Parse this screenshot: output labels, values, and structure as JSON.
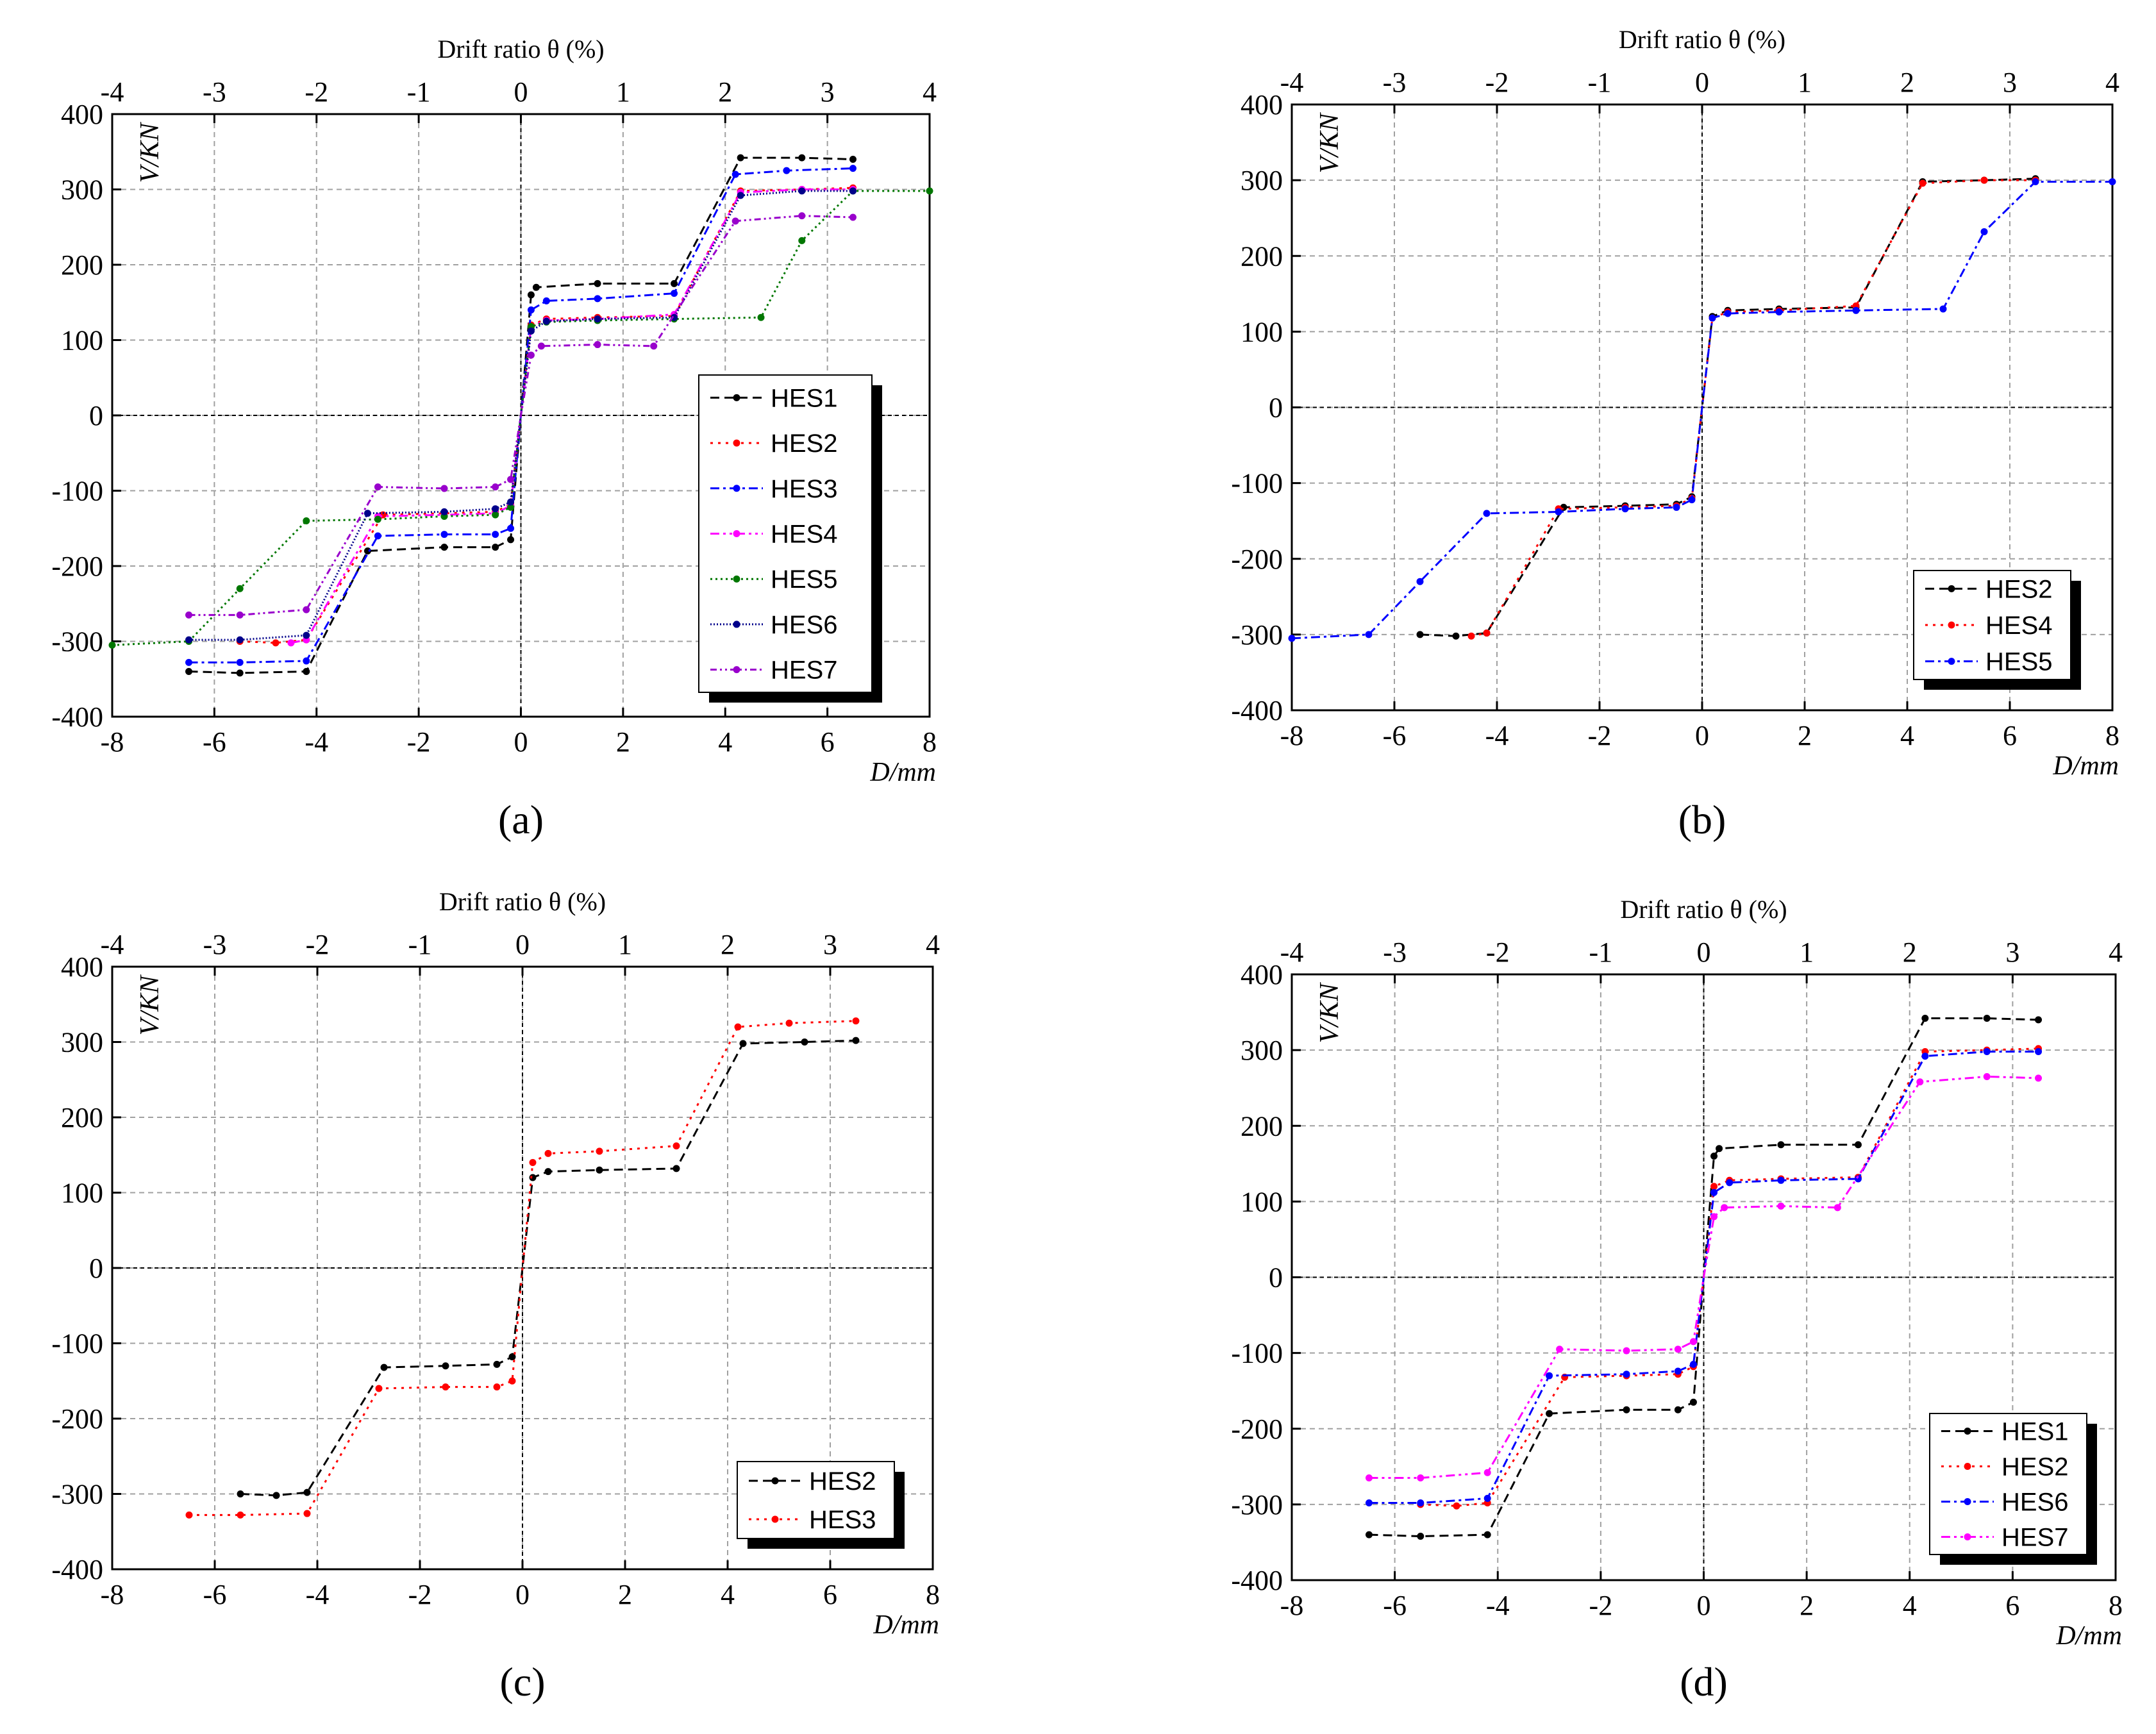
{
  "colors": {
    "HES1": "#000000",
    "HES2": "#ff0000",
    "HES3": "#0000ff",
    "HES4": "#ff00ff",
    "HES5": "#007700",
    "HES6": "#00008b",
    "HES7": "#9900cc",
    "grid": "#a0a0a0",
    "axis": "#000000"
  },
  "chart_data": [
    {
      "panel": "(a)",
      "type": "line",
      "top_axis_label": "Drift ratio θ (%)",
      "ylabel": "V/KN",
      "xlabel": "D/mm",
      "xlim": [
        -8,
        8
      ],
      "ylim": [
        -400,
        400
      ],
      "top_lim": [
        -4,
        4
      ],
      "xticks": [
        "-8",
        "-6",
        "-4",
        "-2",
        "0",
        "2",
        "4",
        "6",
        "8"
      ],
      "yticks": [
        "-400",
        "-300",
        "-200",
        "-100",
        "0",
        "100",
        "200",
        "300",
        "400"
      ],
      "top_ticks": [
        "-4",
        "-3",
        "-2",
        "-1",
        "0",
        "1",
        "2",
        "3",
        "4"
      ],
      "legend": [
        "HES1",
        "HES2",
        "HES3",
        "HES4",
        "HES5",
        "HES6",
        "HES7"
      ],
      "series": [
        {
          "name": "HES1",
          "dash": "14,8",
          "x": [
            -6.5,
            -5.5,
            -4.2,
            -3,
            -1.5,
            -0.5,
            -0.2,
            0,
            0.2,
            0.3,
            1.5,
            3,
            4.3,
            5.5,
            6.5
          ],
          "y": [
            -340,
            -342,
            -340,
            -180,
            -175,
            -175,
            -165,
            0,
            160,
            170,
            175,
            175,
            342,
            342,
            340
          ]
        },
        {
          "name": "HES2",
          "dash": "4,8",
          "x": [
            -5.5,
            -4.8,
            -4.2,
            -2.7,
            -1.5,
            -0.5,
            -0.2,
            0,
            0.2,
            0.5,
            1.5,
            3,
            4.3,
            5.5,
            6.5
          ],
          "y": [
            -300,
            -302,
            -298,
            -132,
            -130,
            -128,
            -118,
            0,
            120,
            128,
            130,
            132,
            298,
            300,
            302
          ]
        },
        {
          "name": "HES3",
          "dash": "14,6,4,6",
          "x": [
            -6.5,
            -5.5,
            -4.2,
            -2.8,
            -1.5,
            -0.5,
            -0.2,
            0,
            0.2,
            0.5,
            1.5,
            3,
            4.2,
            5.2,
            6.5
          ],
          "y": [
            -328,
            -328,
            -326,
            -160,
            -158,
            -158,
            -150,
            0,
            140,
            152,
            155,
            162,
            320,
            325,
            328
          ]
        },
        {
          "name": "HES4",
          "dash": "14,6,4,6,4,6",
          "x": [
            -4.5,
            -4.2,
            -2.8,
            -1.5,
            -0.5,
            -0.2,
            0,
            0.2,
            0.5,
            1.5,
            3,
            4.3,
            5.5,
            6.5
          ],
          "y": [
            -302,
            -298,
            -134,
            -132,
            -130,
            -120,
            0,
            118,
            126,
            128,
            134,
            296,
            300,
            300
          ]
        },
        {
          "name": "HES5",
          "dash": "3,5",
          "x": [
            -8,
            -6.5,
            -5.5,
            -4.2,
            -2.8,
            -1.5,
            -0.5,
            -0.2,
            0,
            0.2,
            0.5,
            1.5,
            3,
            4.7,
            5.5,
            6.5,
            8
          ],
          "y": [
            -305,
            -300,
            -230,
            -140,
            -138,
            -134,
            -132,
            -122,
            0,
            118,
            124,
            126,
            128,
            130,
            232,
            298,
            298
          ]
        },
        {
          "name": "HES6",
          "dash": "2,3",
          "x": [
            -6.5,
            -5.5,
            -4.2,
            -3,
            -1.5,
            -0.5,
            -0.2,
            0,
            0.2,
            0.5,
            1.5,
            3,
            4.3,
            5.5,
            6.5
          ],
          "y": [
            -298,
            -298,
            -292,
            -130,
            -128,
            -124,
            -115,
            0,
            112,
            125,
            128,
            130,
            292,
            298,
            298
          ]
        },
        {
          "name": "HES7",
          "dash": "10,5,3,5,3,5",
          "x": [
            -6.5,
            -5.5,
            -4.2,
            -2.8,
            -1.5,
            -0.5,
            -0.2,
            0,
            0.2,
            0.4,
            1.5,
            2.6,
            4.2,
            5.5,
            6.5
          ],
          "y": [
            -265,
            -265,
            -258,
            -95,
            -97,
            -95,
            -85,
            0,
            80,
            92,
            94,
            92,
            258,
            265,
            263
          ]
        }
      ]
    },
    {
      "panel": "(b)",
      "type": "line",
      "top_axis_label": "Drift ratio θ (%)",
      "ylabel": "V/KN",
      "xlabel": "D/mm",
      "xlim": [
        -8,
        8
      ],
      "ylim": [
        -400,
        400
      ],
      "top_lim": [
        -4,
        4
      ],
      "xticks": [
        "-8",
        "-6",
        "-4",
        "-2",
        "0",
        "2",
        "4",
        "6",
        "8"
      ],
      "yticks": [
        "-400",
        "-300",
        "-200",
        "-100",
        "0",
        "100",
        "200",
        "300",
        "400"
      ],
      "top_ticks": [
        "-4",
        "-3",
        "-2",
        "-1",
        "0",
        "1",
        "2",
        "3",
        "4"
      ],
      "legend": [
        "HES2",
        "HES4",
        "HES5"
      ],
      "series": [
        {
          "name": "HES2",
          "color_key": "HES1",
          "dash": "14,8",
          "x": [
            -5.5,
            -4.8,
            -4.2,
            -2.7,
            -1.5,
            -0.5,
            -0.2,
            0,
            0.2,
            0.5,
            1.5,
            3,
            4.3,
            5.5,
            6.5
          ],
          "y": [
            -300,
            -302,
            -298,
            -132,
            -130,
            -128,
            -118,
            0,
            120,
            128,
            130,
            132,
            298,
            300,
            302
          ]
        },
        {
          "name": "HES4",
          "color_key": "HES2",
          "dash": "4,8",
          "x": [
            -4.5,
            -4.2,
            -2.8,
            -1.5,
            -0.5,
            -0.2,
            0,
            0.2,
            0.5,
            1.5,
            3,
            4.3,
            5.5,
            6.5
          ],
          "y": [
            -302,
            -298,
            -134,
            -132,
            -130,
            -120,
            0,
            118,
            126,
            128,
            134,
            296,
            300,
            300
          ]
        },
        {
          "name": "HES5",
          "color_key": "HES3",
          "dash": "14,6,4,6",
          "x": [
            -8,
            -6.5,
            -5.5,
            -4.2,
            -2.8,
            -1.5,
            -0.5,
            -0.2,
            0,
            0.2,
            0.5,
            1.5,
            3,
            4.7,
            5.5,
            6.5,
            8
          ],
          "y": [
            -305,
            -300,
            -230,
            -140,
            -138,
            -134,
            -132,
            -122,
            0,
            118,
            124,
            126,
            128,
            130,
            232,
            298,
            298
          ]
        }
      ]
    },
    {
      "panel": "(c)",
      "type": "line",
      "top_axis_label": "Drift ratio θ (%)",
      "ylabel": "V/KN",
      "xlabel": "D/mm",
      "xlim": [
        -8,
        8
      ],
      "ylim": [
        -400,
        400
      ],
      "top_lim": [
        -4,
        4
      ],
      "xticks": [
        "-8",
        "-6",
        "-4",
        "-2",
        "0",
        "2",
        "4",
        "6",
        "8"
      ],
      "yticks": [
        "-400",
        "-300",
        "-200",
        "-100",
        "0",
        "100",
        "200",
        "300",
        "400"
      ],
      "top_ticks": [
        "-4",
        "-3",
        "-2",
        "-1",
        "0",
        "1",
        "2",
        "3",
        "4"
      ],
      "legend": [
        "HES2",
        "HES3"
      ],
      "series": [
        {
          "name": "HES2",
          "color_key": "HES1",
          "dash": "14,8",
          "x": [
            -5.5,
            -4.8,
            -4.2,
            -2.7,
            -1.5,
            -0.5,
            -0.2,
            0,
            0.2,
            0.5,
            1.5,
            3,
            4.3,
            5.5,
            6.5
          ],
          "y": [
            -300,
            -302,
            -298,
            -132,
            -130,
            -128,
            -118,
            0,
            120,
            128,
            130,
            132,
            298,
            300,
            302
          ]
        },
        {
          "name": "HES3",
          "color_key": "HES2",
          "dash": "4,8",
          "x": [
            -6.5,
            -5.5,
            -4.2,
            -2.8,
            -1.5,
            -0.5,
            -0.2,
            0,
            0.2,
            0.5,
            1.5,
            3,
            4.2,
            5.2,
            6.5
          ],
          "y": [
            -328,
            -328,
            -326,
            -160,
            -158,
            -158,
            -150,
            0,
            140,
            152,
            155,
            162,
            320,
            325,
            328
          ]
        }
      ]
    },
    {
      "panel": "(d)",
      "type": "line",
      "top_axis_label": "Drift ratio θ (%)",
      "ylabel": "V/KN",
      "xlabel": "D/mm",
      "xlim": [
        -8,
        8
      ],
      "ylim": [
        -400,
        400
      ],
      "top_lim": [
        -4,
        4
      ],
      "xticks": [
        "-8",
        "-6",
        "-4",
        "-2",
        "0",
        "2",
        "4",
        "6",
        "8"
      ],
      "yticks": [
        "-400",
        "-300",
        "-200",
        "-100",
        "0",
        "100",
        "200",
        "300",
        "400"
      ],
      "top_ticks": [
        "-4",
        "-3",
        "-2",
        "-1",
        "0",
        "1",
        "2",
        "3",
        "4"
      ],
      "legend": [
        "HES1",
        "HES2",
        "HES6",
        "HES7"
      ],
      "series": [
        {
          "name": "HES1",
          "color_key": "HES1",
          "dash": "14,8",
          "x": [
            -6.5,
            -5.5,
            -4.2,
            -3,
            -1.5,
            -0.5,
            -0.2,
            0,
            0.2,
            0.3,
            1.5,
            3,
            4.3,
            5.5,
            6.5
          ],
          "y": [
            -340,
            -342,
            -340,
            -180,
            -175,
            -175,
            -165,
            0,
            160,
            170,
            175,
            175,
            342,
            342,
            340
          ]
        },
        {
          "name": "HES2",
          "color_key": "HES2",
          "dash": "4,8",
          "x": [
            -5.5,
            -4.8,
            -4.2,
            -2.7,
            -1.5,
            -0.5,
            -0.2,
            0,
            0.2,
            0.5,
            1.5,
            3,
            4.3,
            5.5,
            6.5
          ],
          "y": [
            -300,
            -302,
            -298,
            -132,
            -130,
            -128,
            -118,
            0,
            120,
            128,
            130,
            132,
            298,
            300,
            302
          ]
        },
        {
          "name": "HES6",
          "color_key": "HES3",
          "dash": "14,6,4,6",
          "x": [
            -6.5,
            -5.5,
            -4.2,
            -3,
            -1.5,
            -0.5,
            -0.2,
            0,
            0.2,
            0.5,
            1.5,
            3,
            4.3,
            5.5,
            6.5
          ],
          "y": [
            -298,
            -298,
            -292,
            -130,
            -128,
            -124,
            -115,
            0,
            112,
            125,
            128,
            130,
            292,
            298,
            298
          ]
        },
        {
          "name": "HES7",
          "color_key": "HES4",
          "dash": "14,6,4,6,4,6",
          "x": [
            -6.5,
            -5.5,
            -4.2,
            -2.8,
            -1.5,
            -0.5,
            -0.2,
            0,
            0.2,
            0.4,
            1.5,
            2.6,
            4.2,
            5.5,
            6.5
          ],
          "y": [
            -265,
            -265,
            -258,
            -95,
            -97,
            -95,
            -85,
            0,
            80,
            92,
            94,
            92,
            258,
            265,
            263
          ]
        }
      ]
    }
  ]
}
